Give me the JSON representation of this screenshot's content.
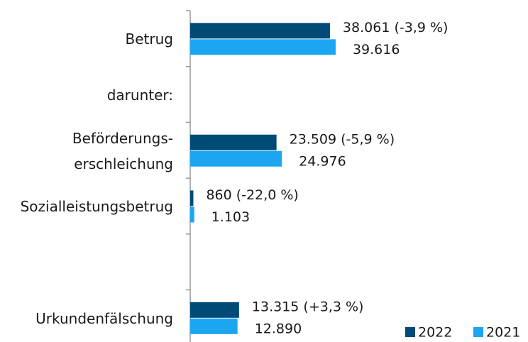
{
  "chart_data": {
    "type": "hbar",
    "categories": [
      "Betrug",
      "darunter:",
      "Beförderungs-\nerschleichung",
      "Sozialleistungsbetrug",
      null,
      "Urkundenfälschung"
    ],
    "series": [
      {
        "name": "2022",
        "color": "#004a77",
        "values": [
          38061,
          null,
          23509,
          860,
          null,
          13315
        ],
        "value_labels": [
          "38.061 (-3,9 %)",
          null,
          "23.509 (-5,9 %)",
          "860 (-22,0 %)",
          null,
          "13.315 (+3,3 %)"
        ]
      },
      {
        "name": "2021",
        "color": "#1ca6f2",
        "values": [
          39616,
          null,
          24976,
          1103,
          null,
          12890
        ],
        "value_labels": [
          "39.616",
          null,
          "24.976",
          "1.103",
          null,
          "12.890"
        ]
      }
    ],
    "xlim": [
      0,
      92000
    ],
    "legend": "lower right"
  }
}
